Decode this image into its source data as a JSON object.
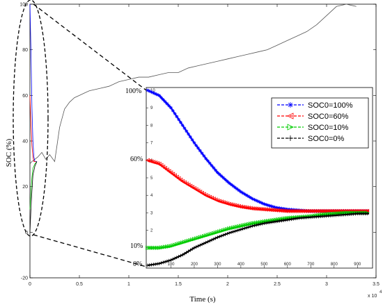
{
  "chart_data": {
    "type": "line",
    "xlabel": "Time (s)",
    "ylabel": "SOC (%)",
    "x_multiplier": "x 10",
    "x_multiplier_exp": "4",
    "xlim": [
      0,
      3.5
    ],
    "ylim": [
      -20,
      100
    ],
    "x_ticks": [
      "0",
      "0.5",
      "1",
      "1.5",
      "2",
      "2.5",
      "3",
      "3.5"
    ],
    "y_ticks": [
      "-20",
      "0",
      "20",
      "40",
      "60",
      "80",
      "100"
    ],
    "grid": false,
    "main_series": {
      "x": [
        0,
        0.02,
        0.05,
        0.08,
        0.12,
        0.16,
        0.2,
        0.25,
        0.3,
        0.35,
        0.4,
        0.45,
        0.5,
        0.55,
        0.6,
        0.7,
        0.8,
        0.9,
        1.0,
        1.1,
        1.2,
        1.3,
        1.4,
        1.5,
        1.6,
        1.7,
        1.8,
        1.9,
        2.0,
        2.1,
        2.2,
        2.3,
        2.4,
        2.5,
        2.6,
        2.7,
        2.8,
        2.9,
        3.0,
        3.1,
        3.2,
        3.3
      ],
      "y": [
        30,
        31,
        32,
        33,
        35,
        32,
        34,
        31,
        46,
        54,
        57,
        59,
        60,
        61,
        62,
        63,
        64,
        66,
        67,
        68,
        68,
        69,
        70,
        70,
        72,
        73,
        74,
        75,
        76,
        77,
        78,
        79,
        80,
        82,
        84,
        86,
        88,
        91,
        95,
        99,
        100,
        99
      ]
    },
    "initial_series": [
      {
        "name": "SOC0=100%",
        "color": "#0000ff",
        "x": [
          0,
          0.01,
          0.02,
          0.03,
          0.04,
          0.05,
          0.07
        ],
        "y": [
          100,
          80,
          55,
          40,
          33,
          31,
          31
        ]
      },
      {
        "name": "SOC0=60%",
        "color": "#ff0000",
        "x": [
          0,
          0.01,
          0.02,
          0.03,
          0.04,
          0.06
        ],
        "y": [
          60,
          48,
          38,
          33,
          31,
          31
        ]
      },
      {
        "name": "SOC0=10%",
        "color": "#00cc00",
        "x": [
          0,
          0.01,
          0.02,
          0.03,
          0.05,
          0.07
        ],
        "y": [
          10,
          18,
          24,
          28,
          30,
          31
        ]
      },
      {
        "name": "SOC0=0%",
        "color": "#000000",
        "x": [
          0,
          0.01,
          0.02,
          0.03,
          0.05,
          0.07
        ],
        "y": [
          0,
          10,
          18,
          25,
          29,
          31
        ]
      }
    ],
    "inset": {
      "x_ticks": [
        "100",
        "200",
        "300",
        "400",
        "500",
        "600",
        "700",
        "800",
        "900"
      ],
      "y_labels": [
        "100%",
        "60%",
        "10%",
        "0%"
      ],
      "y_inner_ticks": [
        "10",
        "9",
        "8",
        "7",
        "6",
        "5",
        "4",
        "3",
        "2",
        "1"
      ],
      "legend": [
        {
          "label": "SOC0=100%",
          "color": "#0000ff",
          "marker": "asterisk"
        },
        {
          "label": "SOC0=60%",
          "color": "#ff0000",
          "marker": "triangle-left"
        },
        {
          "label": "SOC0=10%",
          "color": "#00cc00",
          "marker": "triangle-right"
        },
        {
          "label": "SOC0=0%",
          "color": "#000000",
          "marker": "plus"
        }
      ],
      "series": [
        {
          "name": "SOC0=100%",
          "color": "#0000ff",
          "t": [
            0,
            50,
            100,
            150,
            200,
            250,
            300,
            350,
            400,
            450,
            500,
            550,
            600,
            650,
            700,
            750,
            800,
            850,
            900,
            950
          ],
          "v": [
            100,
            97,
            90,
            80,
            70,
            61,
            53,
            47,
            42,
            38,
            35,
            33,
            32,
            31.5,
            31,
            31,
            31,
            31,
            31,
            31
          ]
        },
        {
          "name": "SOC0=60%",
          "color": "#ff0000",
          "t": [
            0,
            50,
            100,
            150,
            200,
            250,
            300,
            350,
            400,
            450,
            500,
            550,
            600,
            650,
            700,
            750,
            800,
            850,
            900,
            950
          ],
          "v": [
            60,
            58,
            53,
            48,
            44,
            40,
            37,
            35,
            33.5,
            32.5,
            32,
            31.5,
            31,
            31,
            31,
            31,
            31,
            31,
            31,
            31
          ]
        },
        {
          "name": "SOC0=10%",
          "color": "#00cc00",
          "t": [
            0,
            50,
            100,
            150,
            200,
            250,
            300,
            350,
            400,
            450,
            500,
            550,
            600,
            650,
            700,
            750,
            800,
            850,
            900,
            950
          ],
          "v": [
            10,
            10,
            11,
            13,
            15,
            17,
            19,
            21,
            22.5,
            24,
            25,
            26,
            27,
            27.5,
            28,
            29,
            29.5,
            30,
            30,
            30
          ]
        },
        {
          "name": "SOC0=0%",
          "color": "#000000",
          "t": [
            0,
            50,
            100,
            150,
            200,
            250,
            300,
            350,
            400,
            450,
            500,
            550,
            600,
            650,
            700,
            750,
            800,
            850,
            900,
            950
          ],
          "v": [
            0,
            1,
            3,
            6,
            10,
            13,
            16,
            18.5,
            20.5,
            22.5,
            24,
            25,
            26,
            27,
            27.5,
            28,
            28.5,
            29,
            29.5,
            29.5
          ]
        }
      ]
    }
  }
}
